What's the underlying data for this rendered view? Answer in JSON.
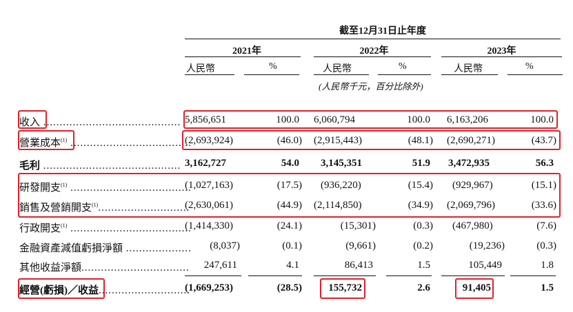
{
  "header": {
    "period": "截至12月31日止年度",
    "years": [
      "2021年",
      "2022年",
      "2023年"
    ],
    "currency": "人民幣",
    "percent": "%",
    "unit_note": "(人民幣千元，百分比除外)"
  },
  "rows": [
    {
      "label": "收入",
      "note": "",
      "values": [
        "5,856,651",
        "100.0",
        "6,060,794",
        "100.0",
        "6,163,206",
        "100.0"
      ],
      "bold": false
    },
    {
      "label": "營業成本",
      "note": "(1)",
      "values": [
        "(2,693,924)",
        "(46.0)",
        "(2,915,443)",
        "(48.1)",
        "(2,690,271)",
        "(43.7)"
      ],
      "bold": false
    },
    {
      "label": "毛利",
      "note": "",
      "values": [
        "3,162,727",
        "54.0",
        "3,145,351",
        "51.9",
        "3,472,935",
        "56.3"
      ],
      "bold": true
    },
    {
      "label": "研發開支",
      "note": "(1)",
      "values": [
        "(1,027,163)",
        "(17.5)",
        "(936,220)",
        "(15.4)",
        "(929,967)",
        "(15.1)"
      ],
      "bold": false
    },
    {
      "label": "銷售及營銷開支",
      "note": "(1)",
      "values": [
        "(2,630,061)",
        "(44.9)",
        "(2,114,850)",
        "(34.9)",
        "(2,069,796)",
        "(33.6)"
      ],
      "bold": false
    },
    {
      "label": "行政開支",
      "note": "(1)",
      "values": [
        "(1,414,330)",
        "(24.1)",
        "(15,301)",
        "(0.3)",
        "(467,980)",
        "(7.6)"
      ],
      "bold": false
    },
    {
      "label": "金融資產減值虧損淨額",
      "note": "",
      "values": [
        "(8,037)",
        "(0.1)",
        "(9,661)",
        "(0.2)",
        "(19,236)",
        "(0.3)"
      ],
      "bold": false
    },
    {
      "label": "其他收益淨額",
      "note": "",
      "values": [
        "247,611",
        "4.1",
        "86,413",
        "1.5",
        "105,449",
        "1.8"
      ],
      "bold": false
    },
    {
      "label": "經營(虧損)／收益",
      "note": "",
      "values": [
        "(1,669,253)",
        "(28.5)",
        "155,732",
        "2.6",
        "91,405",
        "1.5"
      ],
      "bold": true
    }
  ],
  "colors": {
    "highlight": "#e0202a"
  }
}
